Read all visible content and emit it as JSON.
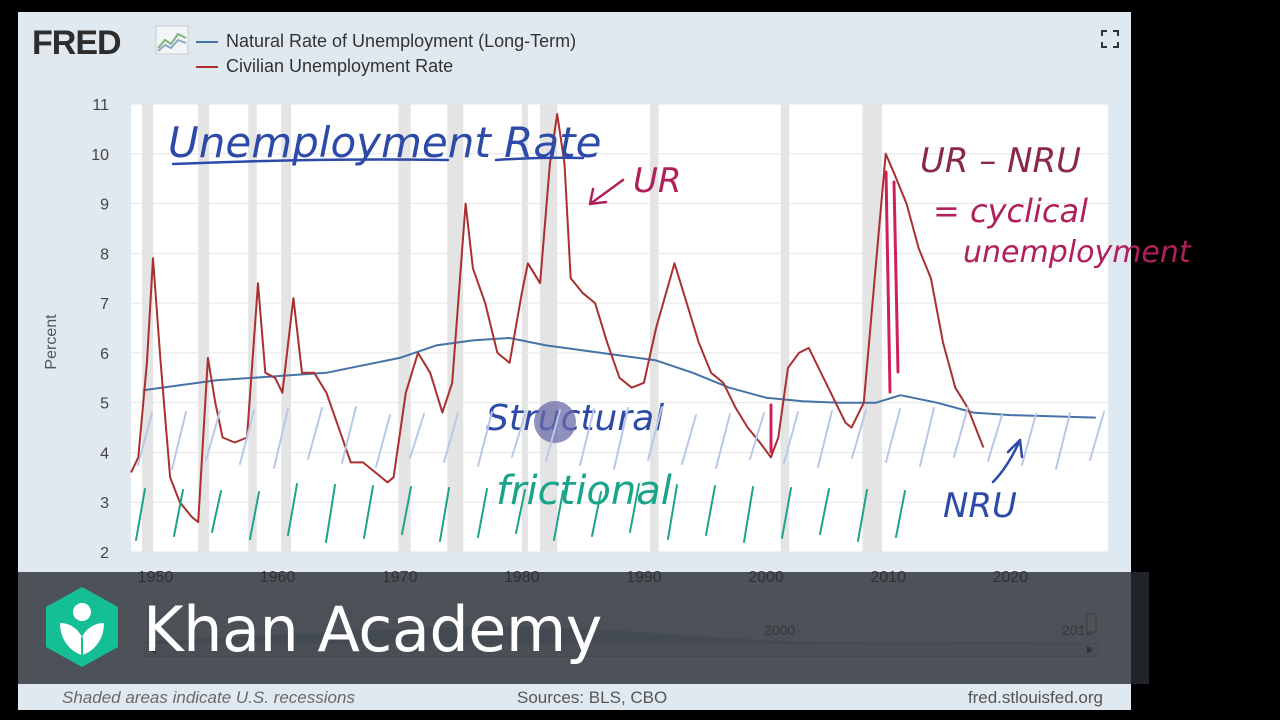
{
  "brand": {
    "logo_text": "FRED"
  },
  "chart_data": {
    "type": "line",
    "title": "",
    "ylabel": "Percent",
    "xlabel": "",
    "xlim": [
      1948,
      2028
    ],
    "ylim": [
      2,
      11
    ],
    "x_ticks": [
      1950,
      1960,
      1970,
      1980,
      1990,
      2000,
      2010,
      2020
    ],
    "y_ticks": [
      2,
      3,
      4,
      5,
      6,
      7,
      8,
      9,
      10,
      11
    ],
    "grid": true,
    "legend_position": "top-left",
    "recessions": [
      [
        1948.9,
        1949.8
      ],
      [
        1953.5,
        1954.4
      ],
      [
        1957.6,
        1958.3
      ],
      [
        1960.3,
        1961.1
      ],
      [
        1969.9,
        1970.9
      ],
      [
        1973.9,
        1975.2
      ],
      [
        1980.0,
        1980.5
      ],
      [
        1981.5,
        1982.9
      ],
      [
        1990.5,
        1991.2
      ],
      [
        2001.2,
        2001.9
      ],
      [
        2007.9,
        2009.5
      ]
    ],
    "series": [
      {
        "name": "Natural Rate of Unemployment (Long-Term)",
        "color": "#4572a7",
        "x": [
          1949,
          1952,
          1955,
          1958,
          1961,
          1964,
          1967,
          1970,
          1973,
          1976,
          1979,
          1982,
          1985,
          1988,
          1991,
          1994,
          1997,
          2000,
          2003,
          2006,
          2009,
          2011,
          2014,
          2017,
          2020,
          2023,
          2027
        ],
        "values": [
          5.25,
          5.35,
          5.45,
          5.5,
          5.55,
          5.6,
          5.75,
          5.9,
          6.15,
          6.25,
          6.3,
          6.15,
          6.05,
          5.95,
          5.85,
          5.6,
          5.3,
          5.1,
          5.03,
          5.0,
          5.0,
          5.15,
          5.0,
          4.8,
          4.75,
          4.73,
          4.7
        ]
      },
      {
        "name": "Civilian Unemployment Rate",
        "color": "#aa3030",
        "x": [
          1948.0,
          1948.6,
          1949.3,
          1949.8,
          1950.4,
          1951.2,
          1952.0,
          1953.0,
          1953.5,
          1954.3,
          1954.9,
          1955.5,
          1956.5,
          1957.5,
          1958.4,
          1959.0,
          1959.8,
          1960.4,
          1961.3,
          1962.0,
          1963.0,
          1964.0,
          1965.0,
          1966.0,
          1967.0,
          1968.0,
          1969.0,
          1969.5,
          1970.5,
          1971.5,
          1972.5,
          1973.5,
          1974.3,
          1975.4,
          1976.0,
          1977.0,
          1978.0,
          1979.0,
          1980.0,
          1980.5,
          1981.5,
          1982.3,
          1982.9,
          1983.5,
          1984.0,
          1985.0,
          1986.0,
          1987.0,
          1988.0,
          1989.0,
          1990.0,
          1991.0,
          1992.5,
          1993.5,
          1994.5,
          1995.5,
          1996.5,
          1997.5,
          1998.5,
          1999.5,
          2000.4,
          2001.0,
          2001.8,
          2002.7,
          2003.5,
          2004.5,
          2005.5,
          2006.5,
          2007.0,
          2008.0,
          2009.0,
          2009.8,
          2010.5,
          2011.5,
          2012.5,
          2013.5,
          2014.5,
          2015.5,
          2016.5,
          2017.8
        ],
        "values": [
          3.6,
          3.9,
          5.8,
          7.9,
          5.9,
          3.5,
          3.0,
          2.7,
          2.6,
          5.9,
          5.0,
          4.3,
          4.2,
          4.3,
          7.4,
          5.6,
          5.5,
          5.2,
          7.1,
          5.6,
          5.6,
          5.2,
          4.5,
          3.8,
          3.8,
          3.6,
          3.4,
          3.5,
          5.2,
          6.0,
          5.6,
          4.8,
          5.4,
          9.0,
          7.7,
          7.0,
          6.0,
          5.8,
          7.2,
          7.8,
          7.4,
          9.8,
          10.8,
          9.8,
          7.5,
          7.2,
          7.0,
          6.2,
          5.5,
          5.3,
          5.4,
          6.5,
          7.8,
          7.0,
          6.2,
          5.6,
          5.4,
          4.9,
          4.5,
          4.2,
          3.9,
          4.3,
          5.7,
          6.0,
          6.1,
          5.6,
          5.1,
          4.6,
          4.5,
          5.0,
          7.8,
          10.0,
          9.6,
          9.0,
          8.1,
          7.5,
          6.2,
          5.3,
          4.9,
          4.1
        ]
      }
    ]
  },
  "legend": {
    "series1": "Natural Rate of Unemployment (Long-Term)",
    "series2": "Civilian Unemployment Rate"
  },
  "navigator": {
    "label_2000": "2000",
    "label_2015": "2015"
  },
  "footer": {
    "recession_note": "Shaded areas indicate U.S. recessions",
    "sources": "Sources: BLS, CBO",
    "site": "fred.stlouisfed.org"
  },
  "annotations": {
    "title": "Unemployment Rate",
    "ur": "UR",
    "formula_1": "UR – NRU",
    "formula_2": "= cyclical",
    "formula_3": "unemployment",
    "structural": "Structural",
    "frictional": "frictional",
    "nru": "NRU"
  },
  "overlay": {
    "brand": "Khan Academy"
  }
}
